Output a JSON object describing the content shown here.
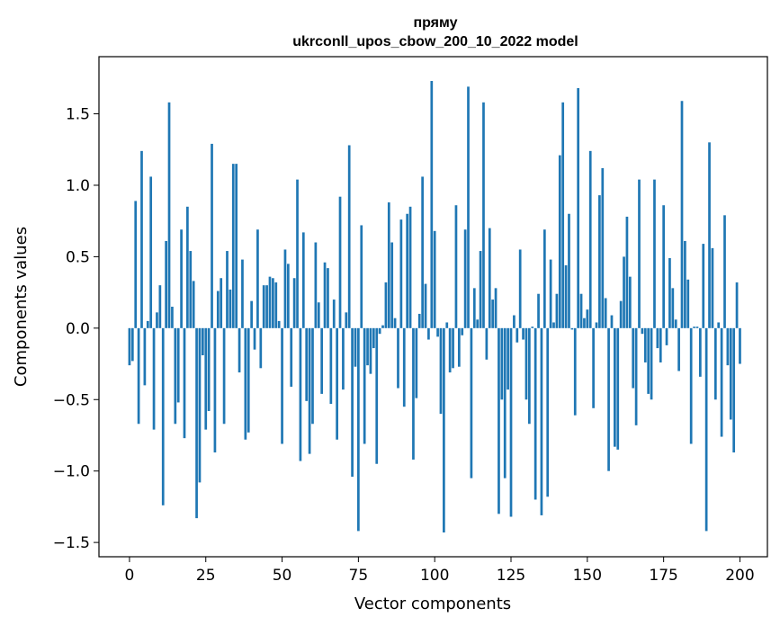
{
  "chart_data": {
    "type": "bar",
    "title": "пряму",
    "subtitle": "ukrconll_upos_cbow_200_10_2022 model",
    "xlabel": "Vector components",
    "ylabel": "Components values",
    "xlim": [
      -10,
      209
    ],
    "ylim": [
      -1.6,
      1.9
    ],
    "xticks": [
      0,
      25,
      50,
      75,
      100,
      125,
      150,
      175,
      200
    ],
    "xtick_labels": [
      "0",
      "25",
      "50",
      "75",
      "100",
      "125",
      "150",
      "175",
      "200"
    ],
    "yticks": [
      -1.5,
      -1.0,
      -0.5,
      0.0,
      0.5,
      1.0,
      1.5
    ],
    "ytick_labels": [
      "−1.5",
      "−1.0",
      "−0.5",
      "0.0",
      "0.5",
      "1.0",
      "1.5"
    ],
    "bar_color": "#1f77b4",
    "grid": false,
    "values": [
      -0.26,
      -0.23,
      0.89,
      -0.67,
      1.24,
      -0.4,
      0.05,
      1.06,
      -0.71,
      0.11,
      0.3,
      -1.24,
      0.61,
      1.58,
      0.15,
      -0.67,
      -0.52,
      0.69,
      -0.77,
      0.85,
      0.54,
      0.33,
      -1.33,
      -1.08,
      -0.19,
      -0.71,
      -0.58,
      1.29,
      -0.87,
      0.26,
      0.35,
      -0.67,
      0.54,
      0.27,
      1.15,
      1.15,
      -0.31,
      0.48,
      -0.78,
      -0.73,
      0.19,
      -0.15,
      0.69,
      -0.28,
      0.3,
      0.3,
      0.36,
      0.35,
      0.32,
      0.05,
      -0.81,
      0.55,
      0.45,
      -0.41,
      0.35,
      1.04,
      -0.93,
      0.67,
      -0.51,
      -0.88,
      -0.67,
      0.6,
      0.18,
      -0.46,
      0.46,
      0.42,
      -0.53,
      0.2,
      -0.78,
      0.92,
      -0.43,
      0.11,
      1.28,
      -1.04,
      -0.27,
      -1.42,
      0.72,
      -0.81,
      -0.26,
      -0.32,
      -0.14,
      -0.95,
      -0.04,
      0.02,
      0.32,
      0.88,
      0.6,
      0.07,
      -0.42,
      0.76,
      -0.55,
      0.8,
      0.85,
      -0.92,
      -0.49,
      0.1,
      1.06,
      0.31,
      -0.08,
      1.73,
      0.68,
      -0.06,
      -0.6,
      -1.43,
      0.04,
      -0.31,
      -0.28,
      0.86,
      -0.27,
      -0.05,
      0.69,
      1.69,
      -1.05,
      0.28,
      0.06,
      0.54,
      1.58,
      -0.22,
      0.7,
      0.2,
      0.28,
      -1.3,
      -0.5,
      -1.05,
      -0.43,
      -1.32,
      0.09,
      -0.1,
      0.55,
      -0.08,
      -0.5,
      -0.67,
      0.01,
      -1.2,
      0.24,
      -1.31,
      0.69,
      -1.18,
      0.48,
      0.04,
      0.24,
      1.21,
      1.58,
      0.44,
      0.8,
      -0.01,
      -0.61,
      1.68,
      0.24,
      0.07,
      0.13,
      1.24,
      -0.56,
      0.04,
      0.93,
      1.12,
      0.21,
      -1.0,
      0.09,
      -0.83,
      -0.85,
      0.19,
      0.5,
      0.78,
      0.36,
      -0.42,
      -0.68,
      1.04,
      -0.04,
      -0.24,
      -0.46,
      -0.5,
      1.04,
      -0.14,
      -0.24,
      0.86,
      -0.12,
      0.49,
      0.28,
      0.06,
      -0.3,
      1.59,
      0.61,
      0.34,
      -0.81,
      0.01,
      0.01,
      -0.34,
      0.59,
      -1.42,
      1.3,
      0.56,
      -0.5,
      0.04,
      -0.76,
      0.79,
      -0.26,
      -0.64,
      -0.87,
      0.32,
      -0.25
    ]
  }
}
